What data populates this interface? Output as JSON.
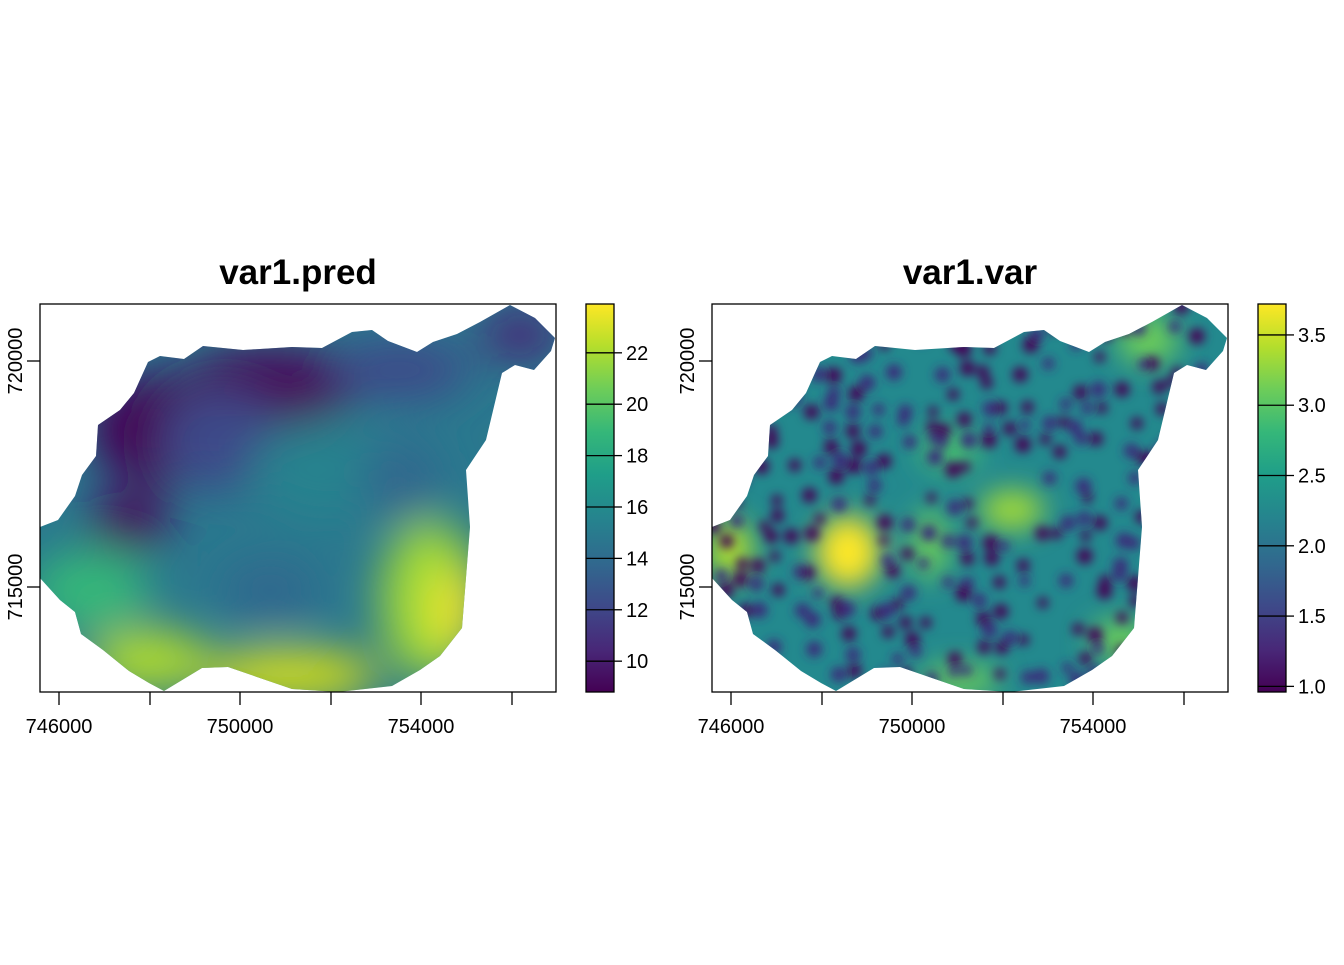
{
  "panels": [
    {
      "title": "var1.pred",
      "x_ticks": [
        "746000",
        "750000",
        "754000"
      ],
      "y_ticks": [
        "715000",
        "720000"
      ],
      "legend_ticks": [
        "10",
        "12",
        "14",
        "16",
        "18",
        "20",
        "22"
      ],
      "legend_range": [
        8.8,
        23.9
      ]
    },
    {
      "title": "var1.var",
      "x_ticks": [
        "746000",
        "750000",
        "754000"
      ],
      "y_ticks": [
        "715000",
        "720000"
      ],
      "legend_ticks": [
        "1.0",
        "1.5",
        "2.0",
        "2.5",
        "3.0",
        "3.5"
      ],
      "legend_range": [
        0.96,
        3.72
      ]
    }
  ],
  "palette": [
    "#440154",
    "#482878",
    "#3e4989",
    "#31688e",
    "#26828e",
    "#1f9e89",
    "#35b779",
    "#6dcd59",
    "#b4de2c",
    "#fde725"
  ]
}
